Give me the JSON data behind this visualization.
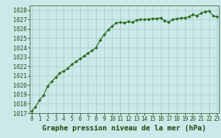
{
  "x": [
    0,
    0.5,
    1,
    1.5,
    2,
    2.5,
    3,
    3.5,
    4,
    4.5,
    5,
    5.5,
    6,
    6.5,
    7,
    7.5,
    8,
    8.5,
    9,
    9.5,
    10,
    10.5,
    11,
    11.5,
    12,
    12.5,
    13,
    13.5,
    14,
    14.5,
    15,
    15.5,
    16,
    16.5,
    17,
    17.5,
    18,
    18.5,
    19,
    19.5,
    20,
    20.5,
    21,
    21.5,
    22,
    22.5,
    23
  ],
  "y": [
    1017.2,
    1017.7,
    1018.4,
    1018.9,
    1019.9,
    1020.4,
    1020.8,
    1021.3,
    1021.5,
    1021.8,
    1022.2,
    1022.5,
    1022.8,
    1023.1,
    1023.4,
    1023.7,
    1024.0,
    1024.8,
    1025.4,
    1025.9,
    1026.3,
    1026.65,
    1026.7,
    1026.65,
    1026.8,
    1026.7,
    1026.95,
    1027.0,
    1027.0,
    1027.05,
    1027.1,
    1027.1,
    1027.2,
    1026.85,
    1026.75,
    1027.0,
    1027.1,
    1027.15,
    1027.2,
    1027.3,
    1027.55,
    1027.4,
    1027.7,
    1027.85,
    1027.9,
    1027.4,
    1027.3
  ],
  "line_color": "#2d6b1e",
  "marker_color": "#2d6b1e",
  "bg_color": "#cce8e8",
  "grid_color": "#99cccc",
  "title": "Graphe pression niveau de la mer (hPa)",
  "title_fontsize": 7.5,
  "tick_fontsize": 6,
  "ylim": [
    1017,
    1028.5
  ],
  "xlim": [
    -0.2,
    23.2
  ],
  "yticks": [
    1017,
    1018,
    1019,
    1020,
    1021,
    1022,
    1023,
    1024,
    1025,
    1026,
    1027,
    1028
  ],
  "xticks": [
    0,
    1,
    2,
    3,
    4,
    5,
    6,
    7,
    8,
    9,
    10,
    11,
    12,
    13,
    14,
    15,
    16,
    17,
    18,
    19,
    20,
    21,
    22,
    23
  ]
}
